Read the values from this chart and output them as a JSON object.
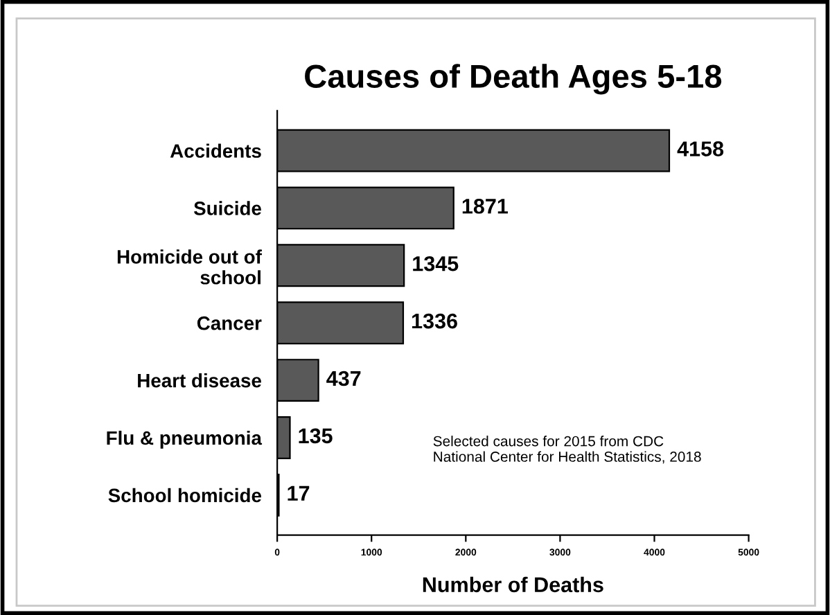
{
  "chart_data": {
    "type": "bar",
    "orientation": "horizontal",
    "title": "Causes of Death Ages 5-18",
    "categories": [
      "Accidents",
      "Suicide",
      "Homicide out of\nschool",
      "Cancer",
      "Heart disease",
      "Flu & pneumonia",
      "School homicide"
    ],
    "values": [
      4158,
      1871,
      1345,
      1336,
      437,
      135,
      17
    ],
    "color": "#595959",
    "xlim": [
      0,
      5000
    ],
    "xticks": [
      0,
      1000,
      2000,
      3000,
      4000,
      5000
    ],
    "xlabel": "Number of Deaths",
    "annotations": [
      "Selected causes for 2015 from CDC\nNational Center for Health Statistics, 2018"
    ],
    "data_labels": true,
    "grid": false,
    "legend": false
  }
}
